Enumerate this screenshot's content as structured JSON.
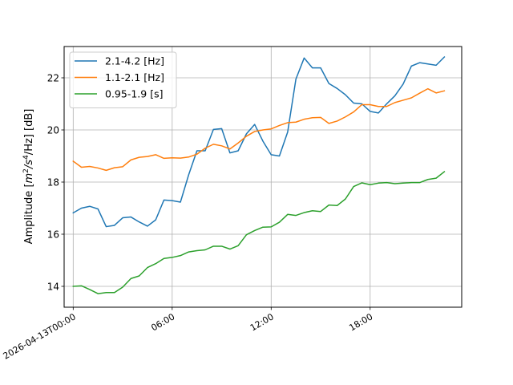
{
  "chart_data": {
    "type": "line",
    "ylabel_parts": [
      "Amplitude [",
      "m",
      "2",
      "/",
      "s",
      "4",
      "/Hz] [dB]"
    ],
    "xlim_hours": [
      -0.55,
      23.55
    ],
    "ylim": [
      13.2,
      23.2
    ],
    "x_ticks": [
      {
        "hour": 0,
        "label": "2026-04-13T00:00"
      },
      {
        "hour": 6,
        "label": "06:00"
      },
      {
        "hour": 12,
        "label": "12:00"
      },
      {
        "hour": 18,
        "label": "18:00"
      }
    ],
    "y_ticks": [
      14,
      16,
      18,
      20,
      22
    ],
    "grid": true,
    "legend_position": "upper left",
    "x_hours": [
      0,
      0.5,
      1,
      1.5,
      2,
      2.5,
      3,
      3.5,
      4,
      4.5,
      5,
      5.5,
      6,
      6.5,
      7,
      7.5,
      8,
      8.5,
      9,
      9.5,
      10,
      10.5,
      11,
      11.5,
      12,
      12.5,
      13,
      13.5,
      14,
      14.5,
      15,
      15.5,
      16,
      16.5,
      17,
      17.5,
      18,
      18.5,
      19,
      19.5,
      20,
      20.5,
      21,
      21.5,
      22,
      22.5
    ],
    "series": [
      {
        "name": "2.1-4.2 [Hz]",
        "color": "#1f77b4",
        "values": [
          16.82,
          17.0,
          17.07,
          16.97,
          16.29,
          16.34,
          16.63,
          16.66,
          16.47,
          16.31,
          16.55,
          17.31,
          17.29,
          17.23,
          18.28,
          19.2,
          19.2,
          20.02,
          20.05,
          19.12,
          19.2,
          19.85,
          20.21,
          19.57,
          19.05,
          19.0,
          19.92,
          21.95,
          22.76,
          22.38,
          22.38,
          21.78,
          21.59,
          21.35,
          21.03,
          21.0,
          20.71,
          20.65,
          21.0,
          21.31,
          21.76,
          22.45,
          22.58,
          22.53,
          22.48,
          22.8
        ]
      },
      {
        "name": "1.1-2.1 [Hz]",
        "color": "#ff7f0e",
        "values": [
          18.8,
          18.57,
          18.6,
          18.54,
          18.45,
          18.55,
          18.59,
          18.85,
          18.95,
          18.98,
          19.05,
          18.91,
          18.93,
          18.92,
          18.96,
          19.07,
          19.3,
          19.45,
          19.39,
          19.27,
          19.5,
          19.76,
          19.94,
          20.0,
          20.04,
          20.17,
          20.28,
          20.3,
          20.41,
          20.47,
          20.48,
          20.25,
          20.34,
          20.5,
          20.69,
          20.97,
          20.97,
          20.9,
          20.9,
          21.05,
          21.14,
          21.23,
          21.41,
          21.58,
          21.42,
          21.5
        ]
      },
      {
        "name": "0.95-1.9 [s]",
        "color": "#2ca02c",
        "values": [
          14.0,
          14.02,
          13.88,
          13.72,
          13.76,
          13.76,
          13.97,
          14.3,
          14.4,
          14.72,
          14.87,
          15.07,
          15.11,
          15.18,
          15.32,
          15.37,
          15.4,
          15.54,
          15.54,
          15.43,
          15.56,
          15.98,
          16.14,
          16.27,
          16.28,
          16.46,
          16.76,
          16.72,
          16.83,
          16.9,
          16.87,
          17.12,
          17.1,
          17.35,
          17.83,
          17.97,
          17.9,
          17.96,
          17.98,
          17.94,
          17.96,
          17.98,
          17.98,
          18.1,
          18.15,
          18.4
        ]
      }
    ]
  }
}
